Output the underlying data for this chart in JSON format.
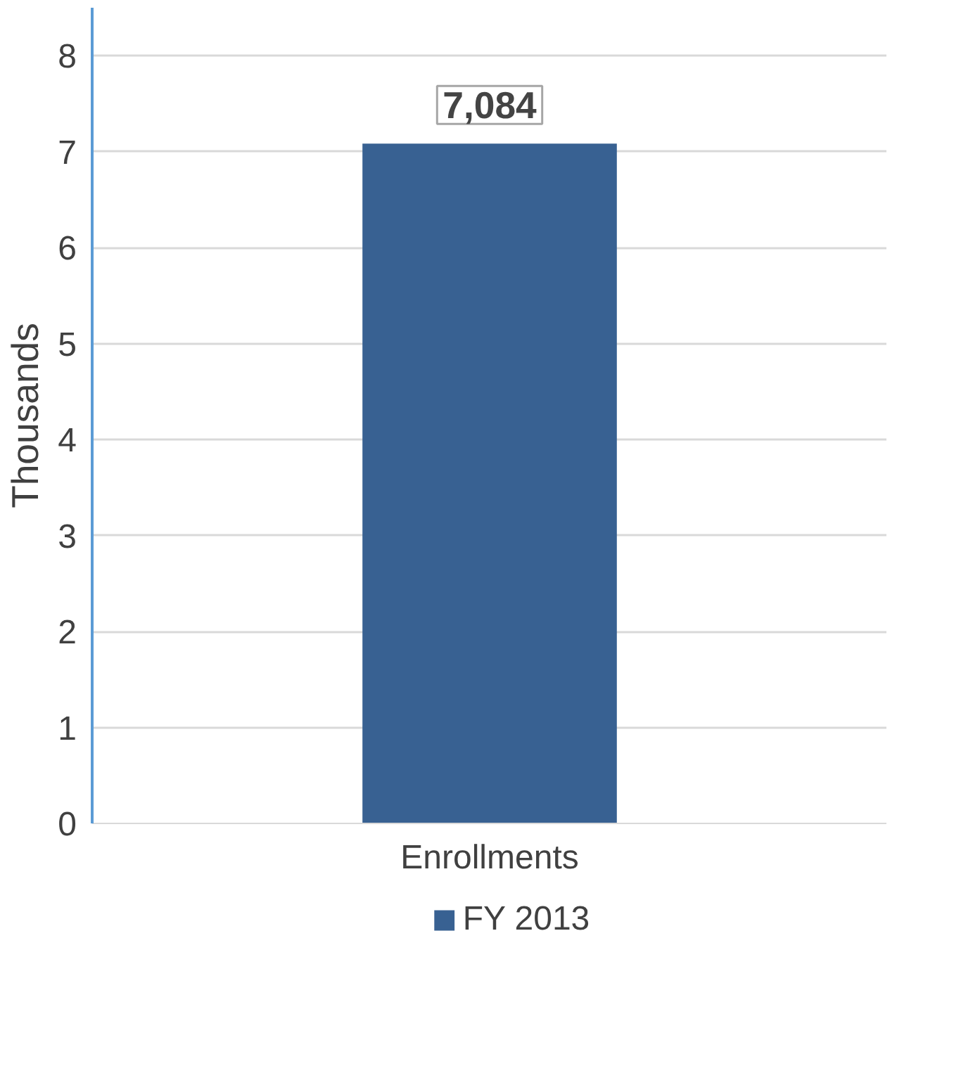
{
  "chart_data": {
    "type": "bar",
    "ylabel": "Thousands",
    "categories": [
      "Enrollments"
    ],
    "series": [
      {
        "name": "FY 2013",
        "color": "#386192",
        "values": [
          7.084
        ]
      }
    ],
    "value_labels": [
      "7,084"
    ],
    "ylim": [
      0,
      8.5
    ],
    "yticks": [
      0,
      1,
      2,
      3,
      4,
      5,
      6,
      7,
      8
    ],
    "grid": "y",
    "legend": "bottom"
  }
}
